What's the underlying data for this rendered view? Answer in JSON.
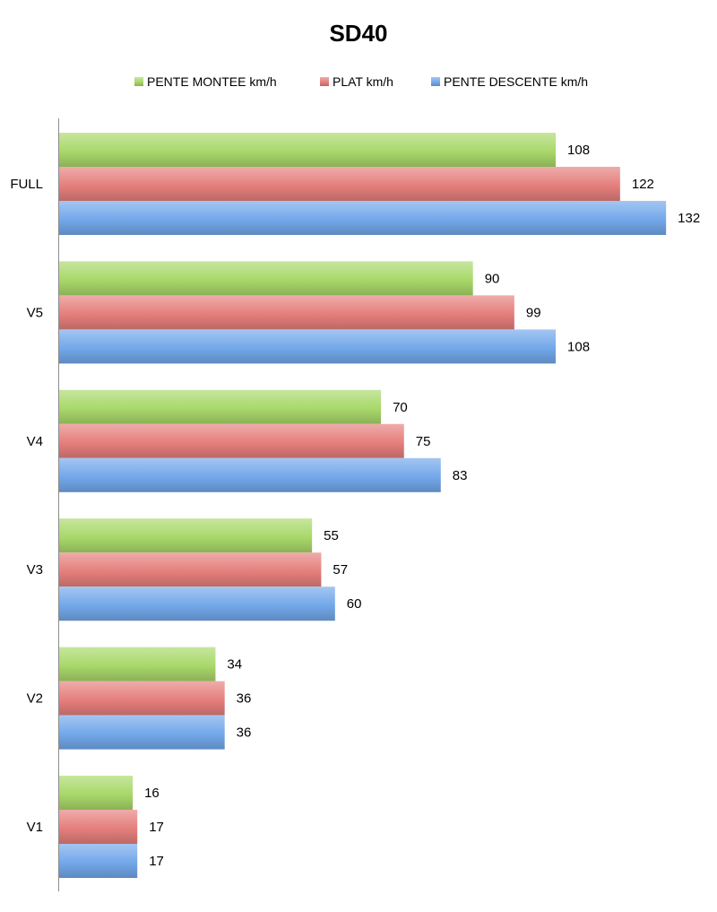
{
  "chart_data": {
    "type": "bar",
    "orientation": "horizontal",
    "title": "SD40",
    "xlabel": "",
    "ylabel": "",
    "categories": [
      "FULL",
      "V5",
      "V4",
      "V3",
      "V2",
      "V1"
    ],
    "series": [
      {
        "name": "PENTE MONTEE km/h",
        "color": "#a9d86a",
        "values": [
          108,
          90,
          70,
          55,
          34,
          16
        ]
      },
      {
        "name": "PLAT km/h",
        "color": "#e57f7c",
        "values": [
          122,
          99,
          75,
          57,
          36,
          17
        ]
      },
      {
        "name": "PENTE DESCENTE km/h",
        "color": "#73a8ea",
        "values": [
          132,
          108,
          83,
          60,
          36,
          17
        ]
      }
    ],
    "xlim": [
      0,
      140
    ],
    "grid": false,
    "legend_position": "top"
  }
}
